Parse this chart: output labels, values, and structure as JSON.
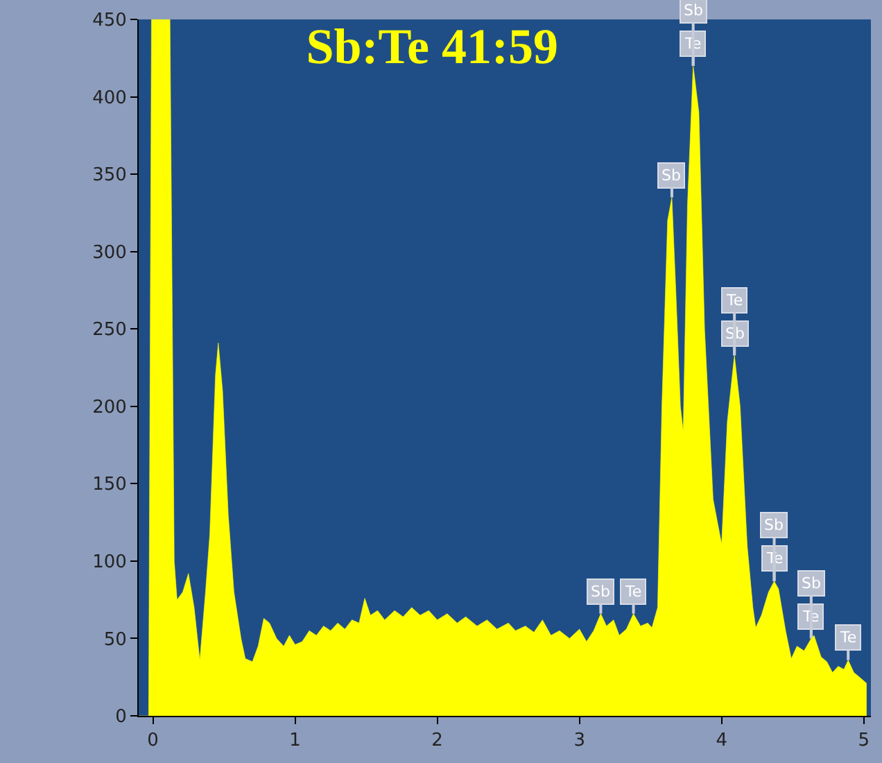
{
  "chart_data": {
    "type": "area",
    "title": "Sb:Te 41:59",
    "x": [
      -0.1,
      -0.03,
      -0.01,
      0.12,
      0.15,
      0.17,
      0.21,
      0.25,
      0.29,
      0.33,
      0.37,
      0.4,
      0.44,
      0.46,
      0.49,
      0.53,
      0.57,
      0.62,
      0.65,
      0.7,
      0.74,
      0.78,
      0.82,
      0.87,
      0.92,
      0.96,
      1.0,
      1.05,
      1.1,
      1.15,
      1.2,
      1.25,
      1.3,
      1.35,
      1.4,
      1.45,
      1.49,
      1.53,
      1.58,
      1.63,
      1.7,
      1.76,
      1.82,
      1.88,
      1.94,
      2.0,
      2.07,
      2.14,
      2.2,
      2.28,
      2.35,
      2.42,
      2.5,
      2.55,
      2.62,
      2.68,
      2.74,
      2.8,
      2.86,
      2.93,
      3.0,
      3.05,
      3.1,
      3.15,
      3.19,
      3.24,
      3.28,
      3.33,
      3.38,
      3.43,
      3.48,
      3.51,
      3.55,
      3.58,
      3.62,
      3.65,
      3.68,
      3.71,
      3.73,
      3.76,
      3.8,
      3.84,
      3.88,
      3.94,
      4.0,
      4.04,
      4.09,
      4.13,
      4.18,
      4.22,
      4.24,
      4.28,
      4.33,
      4.37,
      4.4,
      4.45,
      4.49,
      4.53,
      4.58,
      4.63,
      4.65,
      4.7,
      4.74,
      4.78,
      4.82,
      4.86,
      4.89,
      4.93,
      4.97,
      5.02
    ],
    "series": [
      {
        "color": "#ffff00",
        "values": [
          0,
          0,
          450,
          450,
          100,
          75,
          80,
          92,
          70,
          36,
          80,
          117,
          220,
          241,
          210,
          130,
          80,
          50,
          37,
          35,
          45,
          63,
          60,
          50,
          45,
          52,
          46,
          48,
          55,
          52,
          58,
          55,
          60,
          56,
          62,
          60,
          76,
          65,
          68,
          62,
          68,
          64,
          70,
          65,
          68,
          62,
          66,
          60,
          64,
          58,
          62,
          56,
          60,
          55,
          58,
          54,
          62,
          52,
          55,
          50,
          56,
          48,
          55,
          66,
          58,
          62,
          52,
          56,
          66,
          58,
          60,
          57,
          70,
          200,
          320,
          335,
          270,
          200,
          184,
          330,
          420,
          390,
          250,
          140,
          111,
          190,
          233,
          200,
          110,
          70,
          57,
          65,
          80,
          87,
          82,
          55,
          37,
          45,
          42,
          50,
          52,
          38,
          35,
          28,
          32,
          30,
          36,
          28,
          25,
          21
        ]
      }
    ],
    "xlim": [
      -0.1,
      5.05
    ],
    "xticks": [
      0,
      1,
      2,
      3,
      4,
      5
    ],
    "ylim": [
      0,
      450
    ],
    "yticks": [
      0,
      50,
      100,
      150,
      200,
      250,
      300,
      350,
      400,
      450
    ],
    "grid": false,
    "annotations": [
      {
        "text": "Sb",
        "x": 3.15,
        "y": 66
      },
      {
        "text": "Te",
        "x": 3.38,
        "y": 66
      },
      {
        "text": "Sb",
        "x": 3.65,
        "y": 335
      },
      {
        "text": "Te",
        "x": 3.8,
        "y": 420
      },
      {
        "text": "Sb",
        "x": 3.8,
        "y": 420
      },
      {
        "text": "Sb",
        "x": 4.09,
        "y": 233
      },
      {
        "text": "Te",
        "x": 4.09,
        "y": 233
      },
      {
        "text": "Te",
        "x": 4.37,
        "y": 87
      },
      {
        "text": "Sb",
        "x": 4.37,
        "y": 87
      },
      {
        "text": "Te",
        "x": 4.63,
        "y": 50
      },
      {
        "text": "Sb",
        "x": 4.63,
        "y": 50
      },
      {
        "text": "Te",
        "x": 4.89,
        "y": 36
      }
    ]
  }
}
